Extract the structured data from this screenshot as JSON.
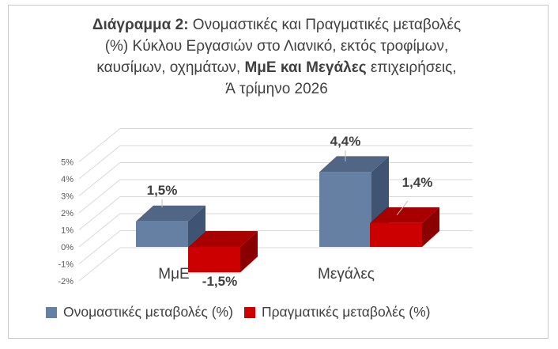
{
  "colors": {
    "nominal": "#6680a3",
    "nominal_top": "#506684",
    "nominal_side": "#3f5472",
    "real": "#cc0000",
    "real_top": "#a80000",
    "real_side": "#8a0000",
    "grid": "#d9d9d9",
    "text": "#404040"
  },
  "title": {
    "lead_bold": "Διάγραμμα 2:",
    "line1_rest": " Ονομαστικές και Πραγματικές μεταβολές",
    "line2": "(%) Κύκλου Εργασιών στο Λιανικό, εκτός τροφίμων,",
    "line3_a": "καυσίμων, οχημάτων, ",
    "line3_bold": "ΜμΕ και Μεγάλες",
    "line3_b": " επιχειρήσεις,",
    "line4": "Ά τρίμηνο 2026"
  },
  "chart_data": {
    "type": "bar",
    "categories": [
      "ΜμΕ",
      "Μεγάλες"
    ],
    "series": [
      {
        "name": "Ονομαστικές μεταβολές (%)",
        "values": [
          1.5,
          4.4
        ],
        "labels": [
          "1,5%",
          "4,4%"
        ]
      },
      {
        "name": "Πραγματικές μεταβολές (%)",
        "values": [
          -1.5,
          1.4
        ],
        "labels": [
          "-1,5%",
          "1,4%"
        ]
      }
    ],
    "yticks": [
      "5%",
      "4%",
      "3%",
      "2%",
      "1%",
      "0%",
      "-1%",
      "-2%"
    ],
    "ylim": [
      -2,
      5
    ],
    "style": "3d-clustered-column",
    "legend_position": "bottom"
  }
}
